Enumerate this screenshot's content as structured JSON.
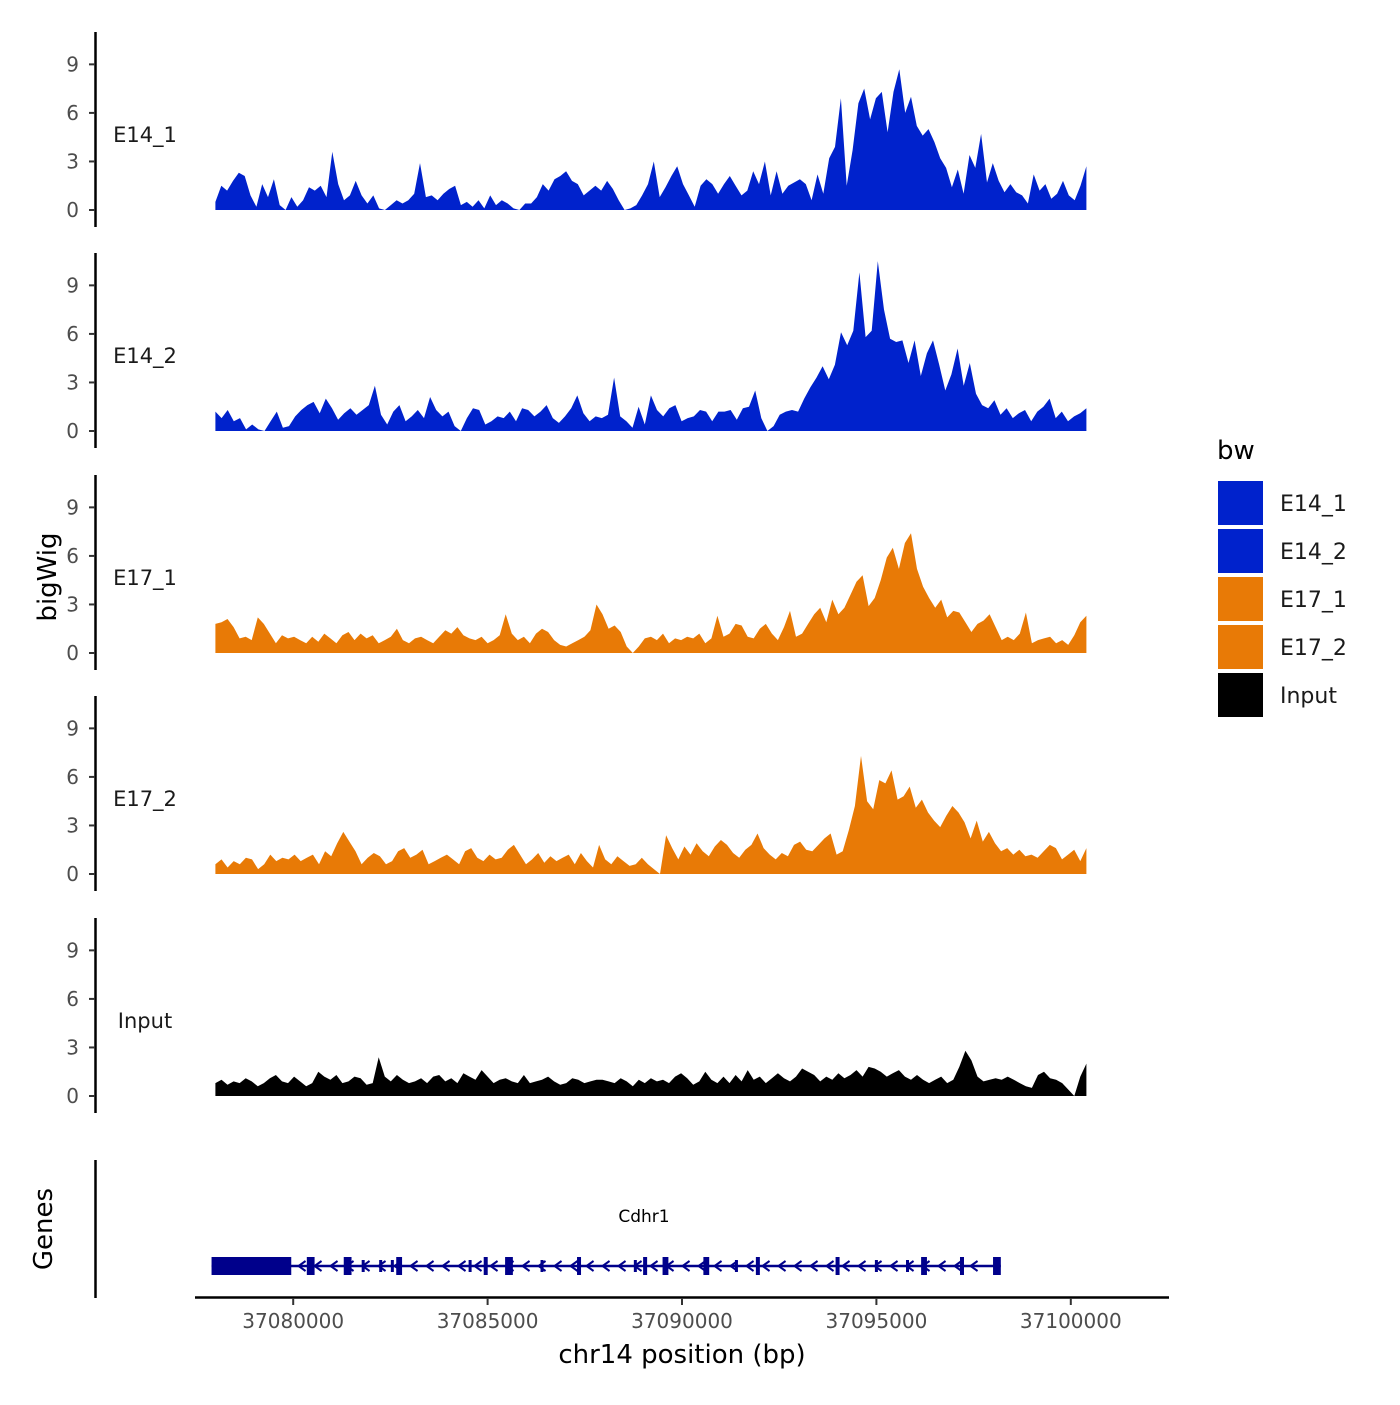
{
  "chart_data": {
    "type": "area",
    "title": "",
    "xlabel": "chr14 position (bp)",
    "ylabel": "bigWig",
    "genes_ylabel": "Genes",
    "xlim": [
      37077500,
      37102500
    ],
    "x_ticks": [
      37080000,
      37085000,
      37090000,
      37095000,
      37100000
    ],
    "x_tick_labels": [
      "37080000",
      "37085000",
      "37090000",
      "37095000",
      "37100000"
    ],
    "ylim": [
      0,
      11
    ],
    "y_ticks": [
      0,
      3,
      6,
      9
    ],
    "y_tick_labels": [
      "0",
      "3",
      "6",
      "9"
    ],
    "signal_x_range": [
      37078000,
      37100400
    ],
    "legend": {
      "title": "bw",
      "position": "right",
      "entries": [
        {
          "label": "E14_1",
          "color": "#0022CC"
        },
        {
          "label": "E14_2",
          "color": "#0022CC"
        },
        {
          "label": "E17_1",
          "color": "#E87A06"
        },
        {
          "label": "E17_2",
          "color": "#E87A06"
        },
        {
          "label": "Input",
          "color": "#000000"
        }
      ]
    },
    "series": [
      {
        "name": "E14_1",
        "color": "#0022CC",
        "values": [
          0.5,
          1.5,
          1.2,
          1.8,
          2.3,
          2.1,
          0.9,
          0.2,
          1.6,
          0.8,
          1.9,
          0.3,
          0,
          0.8,
          0.2,
          0.6,
          1.4,
          1.2,
          1.5,
          0.8,
          3.6,
          1.6,
          0.6,
          0.9,
          1.8,
          0.9,
          0.4,
          0.9,
          0.1,
          0,
          0.3,
          0.6,
          0.4,
          0.6,
          1.0,
          2.9,
          0.8,
          0.9,
          0.6,
          1.0,
          1.3,
          1.5,
          0.3,
          0.5,
          0.2,
          0.6,
          0.1,
          0.9,
          0.3,
          0.6,
          0.4,
          0.1,
          0,
          0.4,
          0.4,
          0.8,
          1.6,
          1.2,
          1.9,
          2.1,
          2.4,
          1.8,
          1.6,
          0.9,
          1.2,
          1.5,
          1.2,
          1.8,
          1.3,
          0.6,
          0,
          0.1,
          0.3,
          0.9,
          1.6,
          3.0,
          0.8,
          1.4,
          2.1,
          2.7,
          1.6,
          0.9,
          0.2,
          1.5,
          1.9,
          1.6,
          1.0,
          1.6,
          2.1,
          1.5,
          0.9,
          1.2,
          2.4,
          1.6,
          3.0,
          0.9,
          2.4,
          1.0,
          1.5,
          1.7,
          1.9,
          1.6,
          0.6,
          2.2,
          1.0,
          3.2,
          3.9,
          6.9,
          1.5,
          3.7,
          6.6,
          7.5,
          5.6,
          6.9,
          7.3,
          4.8,
          7.3,
          8.7,
          6.0,
          7.0,
          5.2,
          4.6,
          5.0,
          4.2,
          3.2,
          2.6,
          1.4,
          2.5,
          1.0,
          3.4,
          2.6,
          4.7,
          1.7,
          2.9,
          1.8,
          1.1,
          1.6,
          1.1,
          0.9,
          0.4,
          2.2,
          1.2,
          1.6,
          0.7,
          1.0,
          1.8,
          0.9,
          0.6,
          1.5,
          2.7
        ]
      },
      {
        "name": "E14_2",
        "color": "#0022CC",
        "values": [
          1.2,
          0.8,
          1.3,
          0.6,
          0.8,
          0.1,
          0.4,
          0.1,
          0,
          0.6,
          1.2,
          0.2,
          0.3,
          0.9,
          1.3,
          1.6,
          1.8,
          1.1,
          2.0,
          1.4,
          0.7,
          1.1,
          1.4,
          1.0,
          1.3,
          1.6,
          2.8,
          1.0,
          0.4,
          1.2,
          1.6,
          0.6,
          0.9,
          1.3,
          0.8,
          2.1,
          1.3,
          0.9,
          1.2,
          0.3,
          0,
          0.8,
          1.4,
          1.3,
          0.4,
          0.6,
          0.9,
          0.8,
          1.2,
          0.6,
          1.4,
          1.3,
          0.9,
          1.2,
          1.6,
          0.8,
          0.5,
          0.9,
          1.4,
          2.2,
          1.1,
          0.6,
          0.9,
          0.8,
          1.0,
          3.3,
          0.9,
          0.6,
          0.2,
          1.5,
          0.4,
          2.2,
          1.3,
          0.9,
          1.4,
          1.6,
          0.6,
          0.8,
          0.9,
          1.3,
          1.2,
          0.6,
          1.2,
          1.2,
          1.3,
          0.7,
          1.4,
          1.5,
          2.5,
          0.8,
          0,
          0.3,
          1.0,
          1.2,
          1.3,
          1.2,
          2.0,
          2.7,
          3.3,
          4.0,
          3.2,
          4.1,
          6.1,
          5.3,
          6.2,
          9.8,
          5.8,
          6.2,
          10.5,
          7.5,
          5.7,
          5.5,
          5.6,
          4.2,
          5.6,
          3.4,
          4.8,
          5.6,
          4.1,
          2.5,
          3.5,
          5.1,
          2.8,
          4.2,
          2.3,
          1.6,
          1.4,
          1.9,
          1.0,
          1.4,
          0.8,
          1.1,
          1.3,
          0.6,
          1.2,
          1.5,
          2.0,
          0.8,
          1.2,
          0.6,
          0.9,
          1.1,
          1.4
        ]
      },
      {
        "name": "E17_1",
        "color": "#E87A06",
        "values": [
          1.8,
          1.9,
          2.1,
          1.6,
          0.9,
          1.0,
          0.8,
          2.2,
          1.8,
          1.2,
          0.6,
          1.1,
          0.9,
          1.0,
          0.8,
          0.6,
          1.0,
          0.7,
          1.2,
          0.9,
          0.6,
          1.1,
          1.3,
          0.8,
          1.2,
          0.9,
          1.1,
          0.6,
          0.8,
          1.0,
          1.5,
          0.8,
          0.6,
          0.9,
          1.0,
          0.8,
          0.6,
          1.0,
          1.4,
          1.2,
          1.6,
          1.1,
          0.9,
          0.8,
          1.0,
          0.6,
          0.8,
          1.1,
          2.4,
          1.2,
          0.8,
          1.0,
          0.6,
          1.2,
          1.5,
          1.3,
          0.8,
          0.5,
          0.4,
          0.6,
          0.8,
          1.0,
          1.4,
          3.0,
          2.4,
          1.5,
          1.7,
          1.3,
          0.4,
          0,
          0.4,
          0.9,
          1.0,
          0.8,
          1.2,
          0.6,
          0.9,
          0.8,
          1.0,
          0.9,
          1.2,
          0.6,
          0.9,
          2.3,
          1.0,
          1.2,
          1.8,
          1.7,
          1.0,
          0.9,
          1.5,
          1.8,
          1.2,
          0.8,
          1.6,
          2.6,
          1.0,
          1.2,
          1.8,
          2.4,
          2.8,
          1.9,
          3.3,
          2.4,
          2.8,
          3.6,
          4.4,
          4.8,
          2.9,
          3.4,
          4.5,
          5.9,
          6.5,
          5.2,
          6.8,
          7.4,
          5.2,
          4.1,
          3.4,
          2.8,
          3.3,
          2.2,
          2.6,
          2.5,
          1.9,
          1.3,
          1.8,
          2.0,
          2.4,
          1.6,
          0.8,
          1.0,
          0.8,
          1.2,
          2.5,
          0.6,
          0.8,
          0.9,
          1.0,
          0.6,
          0.8,
          0.5,
          1.1,
          1.9,
          2.3
        ]
      },
      {
        "name": "E17_2",
        "color": "#E87A06",
        "values": [
          0.6,
          0.9,
          0.4,
          0.8,
          0.6,
          1.0,
          0.9,
          0.3,
          0.6,
          1.2,
          0.8,
          1.0,
          0.9,
          1.2,
          0.8,
          1.0,
          1.2,
          0.6,
          1.4,
          1.1,
          1.9,
          2.6,
          2.0,
          1.4,
          0.6,
          1.0,
          1.3,
          1.1,
          0.6,
          0.8,
          1.4,
          1.6,
          1.0,
          1.2,
          1.5,
          0.6,
          0.8,
          1.0,
          1.2,
          0.9,
          0.6,
          1.4,
          1.6,
          1.0,
          0.8,
          1.2,
          0.9,
          1.0,
          1.5,
          1.8,
          1.2,
          0.6,
          0.9,
          1.3,
          0.7,
          1.1,
          0.8,
          1.0,
          1.2,
          0.6,
          1.3,
          0.8,
          0.4,
          1.8,
          0.9,
          0.6,
          1.1,
          0.8,
          0.5,
          0.6,
          1.0,
          0.6,
          0.3,
          0,
          2.4,
          1.6,
          0.9,
          1.7,
          1.2,
          1.9,
          1.4,
          1.1,
          1.7,
          2.1,
          1.8,
          1.3,
          1.0,
          1.5,
          1.8,
          2.5,
          1.6,
          1.2,
          0.9,
          1.3,
          1.1,
          1.8,
          2.0,
          1.5,
          1.4,
          1.8,
          2.2,
          2.5,
          1.2,
          1.4,
          2.7,
          4.2,
          7.3,
          4.5,
          4.0,
          5.8,
          5.6,
          6.4,
          4.6,
          4.8,
          5.4,
          4.1,
          4.6,
          3.8,
          3.3,
          2.9,
          3.6,
          4.2,
          3.8,
          3.2,
          2.2,
          3.3,
          2.0,
          2.6,
          1.9,
          1.4,
          1.6,
          1.2,
          1.5,
          1.1,
          1.2,
          1.0,
          1.4,
          1.8,
          1.6,
          0.9,
          1.2,
          1.5,
          0.8,
          1.6
        ]
      },
      {
        "name": "Input",
        "color": "#000000",
        "values": [
          0.8,
          1.0,
          0.7,
          0.9,
          0.8,
          1.1,
          0.9,
          0.6,
          0.8,
          1.1,
          1.3,
          0.9,
          0.8,
          1.2,
          0.9,
          0.6,
          0.8,
          1.5,
          1.2,
          1.0,
          1.3,
          0.8,
          0.9,
          1.2,
          1.1,
          0.7,
          0.8,
          2.4,
          1.2,
          0.9,
          1.3,
          1.0,
          0.8,
          0.9,
          1.1,
          0.8,
          1.2,
          1.3,
          0.9,
          1.1,
          0.8,
          1.4,
          1.2,
          1.0,
          1.6,
          1.2,
          0.8,
          1.0,
          1.1,
          0.9,
          0.8,
          1.3,
          0.8,
          0.9,
          1.0,
          1.2,
          0.9,
          0.7,
          0.8,
          1.1,
          1.0,
          0.8,
          0.9,
          1.0,
          1.0,
          0.9,
          0.8,
          1.1,
          0.9,
          0.6,
          1.0,
          0.8,
          1.1,
          0.9,
          1.0,
          0.8,
          1.2,
          1.4,
          1.1,
          0.7,
          0.9,
          1.5,
          1.0,
          0.8,
          1.2,
          0.8,
          1.3,
          0.9,
          1.6,
          1.0,
          1.2,
          0.8,
          1.1,
          1.4,
          1.1,
          0.9,
          1.2,
          1.7,
          1.5,
          1.3,
          0.9,
          1.2,
          1.0,
          1.4,
          1.1,
          1.3,
          1.6,
          1.2,
          1.8,
          1.7,
          1.5,
          1.2,
          1.4,
          1.6,
          1.2,
          1.0,
          1.3,
          1.0,
          0.8,
          1.0,
          1.2,
          0.8,
          1.0,
          1.8,
          2.8,
          2.2,
          1.2,
          0.9,
          1.0,
          1.1,
          1.0,
          1.2,
          1.0,
          0.8,
          0.6,
          0.5,
          1.3,
          1.5,
          1.1,
          1.0,
          0.8,
          0.4,
          0,
          1.2,
          2.0
        ]
      }
    ],
    "gene": {
      "name": "Cdhr1",
      "strand": "-",
      "start": 37077900,
      "end": 37098200,
      "color": "#00008B",
      "wide_exons": [
        [
          37077900,
          37079950
        ]
      ],
      "exons": [
        [
          37080350,
          37080550
        ],
        [
          37081300,
          37081500
        ],
        [
          37082650,
          37082800
        ],
        [
          37084900,
          37085000
        ],
        [
          37085450,
          37085650
        ],
        [
          37087300,
          37087400
        ],
        [
          37089000,
          37089100
        ],
        [
          37089500,
          37089650
        ],
        [
          37090550,
          37090700
        ],
        [
          37091900,
          37092000
        ],
        [
          37093950,
          37094050
        ],
        [
          37096150,
          37096300
        ],
        [
          37097150,
          37097250
        ],
        [
          37098000,
          37098200
        ]
      ],
      "small_exons": [
        37079650,
        37081800,
        37082250,
        37082550,
        37084550,
        37086400,
        37088800,
        37091400,
        37095000,
        37095800
      ]
    }
  }
}
